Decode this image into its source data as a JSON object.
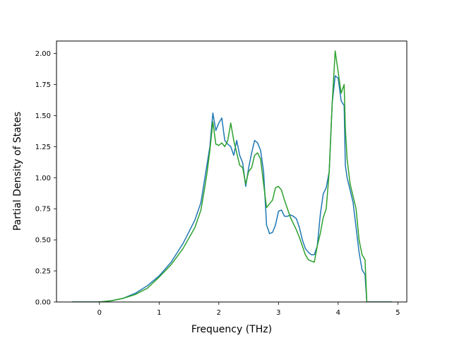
{
  "chart_data": {
    "type": "line",
    "title": "",
    "xlabel": "Frequency (THz)",
    "ylabel": "Partial Density of States",
    "xlim": [
      -0.72,
      5.15
    ],
    "ylim": [
      0,
      2.1
    ],
    "xticks": [
      0,
      1,
      2,
      3,
      4,
      5
    ],
    "xtick_labels": [
      "0",
      "1",
      "2",
      "3",
      "4",
      "5"
    ],
    "yticks": [
      0,
      0.25,
      0.5,
      0.75,
      1.0,
      1.25,
      1.5,
      1.75,
      2.0
    ],
    "ytick_labels": [
      "0.00",
      "0.25",
      "0.50",
      "0.75",
      "1.00",
      "1.25",
      "1.50",
      "1.75",
      "2.00"
    ],
    "grid": false,
    "legend": false,
    "series": [
      {
        "color": "#1f77b4",
        "points": [
          [
            -0.46,
            0.0
          ],
          [
            0.0,
            0.0
          ],
          [
            0.2,
            0.01
          ],
          [
            0.4,
            0.03
          ],
          [
            0.6,
            0.07
          ],
          [
            0.8,
            0.13
          ],
          [
            1.0,
            0.21
          ],
          [
            1.2,
            0.32
          ],
          [
            1.4,
            0.47
          ],
          [
            1.6,
            0.66
          ],
          [
            1.7,
            0.8
          ],
          [
            1.75,
            0.95
          ],
          [
            1.8,
            1.1
          ],
          [
            1.85,
            1.25
          ],
          [
            1.9,
            1.52
          ],
          [
            1.95,
            1.38
          ],
          [
            2.0,
            1.44
          ],
          [
            2.05,
            1.48
          ],
          [
            2.1,
            1.3
          ],
          [
            2.15,
            1.27
          ],
          [
            2.2,
            1.25
          ],
          [
            2.25,
            1.18
          ],
          [
            2.3,
            1.3
          ],
          [
            2.35,
            1.18
          ],
          [
            2.4,
            1.12
          ],
          [
            2.45,
            0.93
          ],
          [
            2.5,
            1.08
          ],
          [
            2.55,
            1.2
          ],
          [
            2.6,
            1.3
          ],
          [
            2.65,
            1.28
          ],
          [
            2.7,
            1.22
          ],
          [
            2.75,
            1.05
          ],
          [
            2.8,
            0.62
          ],
          [
            2.85,
            0.55
          ],
          [
            2.9,
            0.56
          ],
          [
            2.95,
            0.62
          ],
          [
            3.0,
            0.73
          ],
          [
            3.05,
            0.74
          ],
          [
            3.1,
            0.69
          ],
          [
            3.15,
            0.69
          ],
          [
            3.2,
            0.7
          ],
          [
            3.25,
            0.69
          ],
          [
            3.3,
            0.67
          ],
          [
            3.35,
            0.6
          ],
          [
            3.4,
            0.5
          ],
          [
            3.45,
            0.43
          ],
          [
            3.5,
            0.4
          ],
          [
            3.55,
            0.38
          ],
          [
            3.6,
            0.38
          ],
          [
            3.65,
            0.45
          ],
          [
            3.7,
            0.7
          ],
          [
            3.75,
            0.87
          ],
          [
            3.8,
            0.92
          ],
          [
            3.85,
            1.05
          ],
          [
            3.9,
            1.6
          ],
          [
            3.95,
            1.82
          ],
          [
            4.0,
            1.8
          ],
          [
            4.05,
            1.62
          ],
          [
            4.1,
            1.58
          ],
          [
            4.12,
            1.1
          ],
          [
            4.15,
            1.0
          ],
          [
            4.2,
            0.9
          ],
          [
            4.25,
            0.8
          ],
          [
            4.3,
            0.6
          ],
          [
            4.35,
            0.4
          ],
          [
            4.4,
            0.26
          ],
          [
            4.45,
            0.22
          ],
          [
            4.48,
            0.0
          ],
          [
            4.9,
            0.0
          ]
        ]
      },
      {
        "color": "#2ca02c",
        "points": [
          [
            -0.46,
            0.0
          ],
          [
            0.0,
            0.0
          ],
          [
            0.2,
            0.01
          ],
          [
            0.4,
            0.03
          ],
          [
            0.6,
            0.06
          ],
          [
            0.8,
            0.11
          ],
          [
            1.0,
            0.2
          ],
          [
            1.2,
            0.3
          ],
          [
            1.4,
            0.43
          ],
          [
            1.6,
            0.6
          ],
          [
            1.7,
            0.74
          ],
          [
            1.75,
            0.88
          ],
          [
            1.8,
            1.03
          ],
          [
            1.85,
            1.22
          ],
          [
            1.9,
            1.45
          ],
          [
            1.95,
            1.27
          ],
          [
            2.0,
            1.26
          ],
          [
            2.05,
            1.28
          ],
          [
            2.1,
            1.25
          ],
          [
            2.15,
            1.3
          ],
          [
            2.2,
            1.44
          ],
          [
            2.25,
            1.3
          ],
          [
            2.3,
            1.2
          ],
          [
            2.35,
            1.1
          ],
          [
            2.4,
            1.08
          ],
          [
            2.45,
            0.95
          ],
          [
            2.5,
            1.05
          ],
          [
            2.55,
            1.08
          ],
          [
            2.6,
            1.18
          ],
          [
            2.65,
            1.2
          ],
          [
            2.7,
            1.15
          ],
          [
            2.75,
            0.95
          ],
          [
            2.8,
            0.76
          ],
          [
            2.85,
            0.79
          ],
          [
            2.9,
            0.82
          ],
          [
            2.95,
            0.92
          ],
          [
            3.0,
            0.93
          ],
          [
            3.05,
            0.9
          ],
          [
            3.1,
            0.82
          ],
          [
            3.15,
            0.75
          ],
          [
            3.2,
            0.68
          ],
          [
            3.25,
            0.63
          ],
          [
            3.3,
            0.58
          ],
          [
            3.35,
            0.52
          ],
          [
            3.4,
            0.45
          ],
          [
            3.45,
            0.38
          ],
          [
            3.5,
            0.34
          ],
          [
            3.55,
            0.33
          ],
          [
            3.6,
            0.32
          ],
          [
            3.65,
            0.45
          ],
          [
            3.7,
            0.55
          ],
          [
            3.75,
            0.68
          ],
          [
            3.8,
            0.75
          ],
          [
            3.85,
            1.05
          ],
          [
            3.9,
            1.6
          ],
          [
            3.95,
            2.02
          ],
          [
            4.0,
            1.85
          ],
          [
            4.05,
            1.68
          ],
          [
            4.1,
            1.75
          ],
          [
            4.12,
            1.4
          ],
          [
            4.15,
            1.15
          ],
          [
            4.2,
            0.95
          ],
          [
            4.25,
            0.85
          ],
          [
            4.3,
            0.75
          ],
          [
            4.35,
            0.5
          ],
          [
            4.4,
            0.38
          ],
          [
            4.45,
            0.34
          ],
          [
            4.48,
            0.0
          ],
          [
            4.9,
            0.0
          ]
        ]
      }
    ]
  }
}
